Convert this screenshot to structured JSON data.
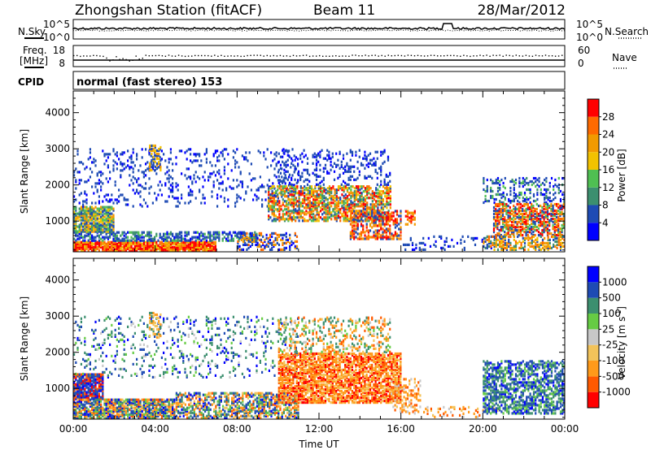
{
  "header": {
    "station": "Zhongshan Station (fitACF)",
    "beam": "Beam 11",
    "date": "28/Mar/2012"
  },
  "nsky_panel": {
    "left_label": "N.Sky",
    "right_label": "N.Search",
    "left_ticks": [
      "10^5",
      "10^0"
    ],
    "right_ticks": [
      "10^5",
      "10^0"
    ]
  },
  "freq_panel": {
    "left_label_top": "Freq.",
    "left_label_bottom": "[MHz]",
    "right_label": "Nave",
    "left_ticks": [
      "18",
      "8"
    ],
    "right_ticks": [
      "60",
      "0"
    ]
  },
  "cpid": {
    "label": "CPID",
    "value": "normal (fast stereo) 153"
  },
  "colors": {
    "power_scale": [
      "#0000ff",
      "#1e4bb4",
      "#3c8f6f",
      "#4fbf52",
      "#f2c200",
      "#f29a00",
      "#ff6a00",
      "#ff0000"
    ],
    "velocity_scale": [
      "#ff0000",
      "#ff5a00",
      "#ff9a1a",
      "#f2c35a",
      "#c8c8c8",
      "#66cc44",
      "#3c8f6f",
      "#1e4bb4",
      "#0000ff"
    ]
  },
  "chart_data": [
    {
      "type": "heatmap",
      "name": "power",
      "ylabel": "Slant Range [km]",
      "yticks": [
        1000,
        2000,
        3000,
        4000
      ],
      "ylim": [
        150,
        4600
      ],
      "xticks": [
        "00:00",
        "04:00",
        "08:00",
        "12:00",
        "16:00",
        "20:00",
        "00:00"
      ],
      "xlim_hours": [
        0,
        24
      ],
      "colorbar": {
        "label": "Power [dB]",
        "ticks": [
          4,
          8,
          12,
          16,
          20,
          24,
          28
        ],
        "range": [
          0,
          32
        ]
      }
    },
    {
      "type": "heatmap",
      "name": "velocity",
      "ylabel": "Slant Range [km]",
      "yticks": [
        1000,
        2000,
        3000,
        4000
      ],
      "ylim": [
        150,
        4600
      ],
      "xticks": [
        "00:00",
        "04:00",
        "08:00",
        "12:00",
        "16:00",
        "20:00",
        "00:00"
      ],
      "xlabel": "Time UT",
      "xlim_hours": [
        0,
        24
      ],
      "colorbar": {
        "label": "Velocity [m s",
        "label_sup": "-1",
        "label_end": "]",
        "ticks": [
          1000,
          500,
          100,
          25,
          -25,
          -100,
          -500,
          -1000
        ]
      }
    }
  ]
}
